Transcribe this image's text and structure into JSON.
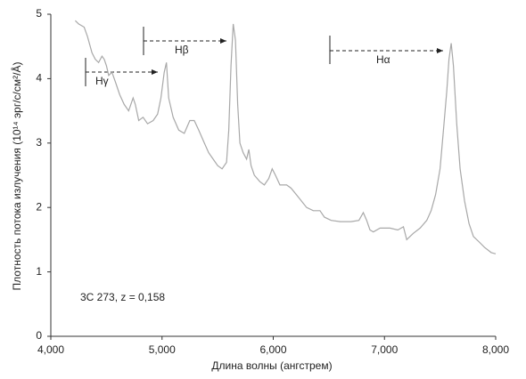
{
  "chart_data": {
    "type": "line",
    "x_label": "Длина волны (ангстрем)",
    "y_label": "Плотность потока излучения (10¹⁴ эрг/с/см²/Å)",
    "annotations": [
      "3C 273, z = 0,158",
      "Hγ",
      "Hβ",
      "Hα"
    ],
    "x": [
      4220,
      4250,
      4300,
      4330,
      4370,
      4400,
      4430,
      4460,
      4480,
      4500,
      4520,
      4550,
      4580,
      4620,
      4660,
      4700,
      4740,
      4760,
      4790,
      4830,
      4870,
      4920,
      4960,
      4990,
      5020,
      5040,
      5060,
      5100,
      5150,
      5200,
      5250,
      5290,
      5330,
      5380,
      5420,
      5460,
      5500,
      5540,
      5580,
      5600,
      5620,
      5640,
      5660,
      5680,
      5700,
      5730,
      5760,
      5780,
      5800,
      5830,
      5880,
      5920,
      5960,
      5990,
      6020,
      6060,
      6120,
      6160,
      6230,
      6300,
      6360,
      6420,
      6460,
      6520,
      6600,
      6700,
      6770,
      6810,
      6840,
      6870,
      6900,
      6960,
      7050,
      7120,
      7170,
      7200,
      7230,
      7260,
      7320,
      7380,
      7420,
      7460,
      7500,
      7530,
      7560,
      7580,
      7600,
      7620,
      7650,
      7680,
      7720,
      7760,
      7800,
      7860,
      7900,
      7960,
      8000
    ],
    "series": [
      {
        "color": "#a8a8a8",
        "values": [
          4.9,
          4.85,
          4.8,
          4.65,
          4.4,
          4.3,
          4.25,
          4.35,
          4.3,
          4.2,
          4.05,
          4.1,
          3.95,
          3.75,
          3.6,
          3.5,
          3.7,
          3.6,
          3.35,
          3.4,
          3.3,
          3.35,
          3.45,
          3.7,
          4.1,
          4.25,
          3.7,
          3.4,
          3.2,
          3.15,
          3.35,
          3.35,
          3.2,
          3.0,
          2.85,
          2.75,
          2.65,
          2.6,
          2.7,
          3.2,
          4.2,
          4.85,
          4.6,
          3.6,
          3.0,
          2.85,
          2.75,
          2.9,
          2.65,
          2.5,
          2.4,
          2.35,
          2.45,
          2.6,
          2.5,
          2.35,
          2.35,
          2.3,
          2.15,
          2.0,
          1.95,
          1.95,
          1.85,
          1.8,
          1.78,
          1.78,
          1.8,
          1.92,
          1.8,
          1.65,
          1.62,
          1.68,
          1.68,
          1.65,
          1.7,
          1.5,
          1.55,
          1.6,
          1.68,
          1.8,
          1.95,
          2.2,
          2.6,
          3.2,
          3.8,
          4.3,
          4.55,
          4.2,
          3.3,
          2.6,
          2.1,
          1.75,
          1.55,
          1.45,
          1.38,
          1.3,
          1.28
        ]
      }
    ],
    "xlim": [
      4000,
      8000
    ],
    "xticks": [
      {
        "value": 4000,
        "label": "4,000"
      },
      {
        "value": 5000,
        "label": "5,000"
      },
      {
        "value": 6000,
        "label": "6,000"
      },
      {
        "value": 7000,
        "label": "7,000"
      },
      {
        "value": 8000,
        "label": "8,000"
      }
    ],
    "ylim": [
      0,
      5
    ],
    "yticks": [
      0,
      1,
      2,
      3,
      4,
      5
    ]
  }
}
